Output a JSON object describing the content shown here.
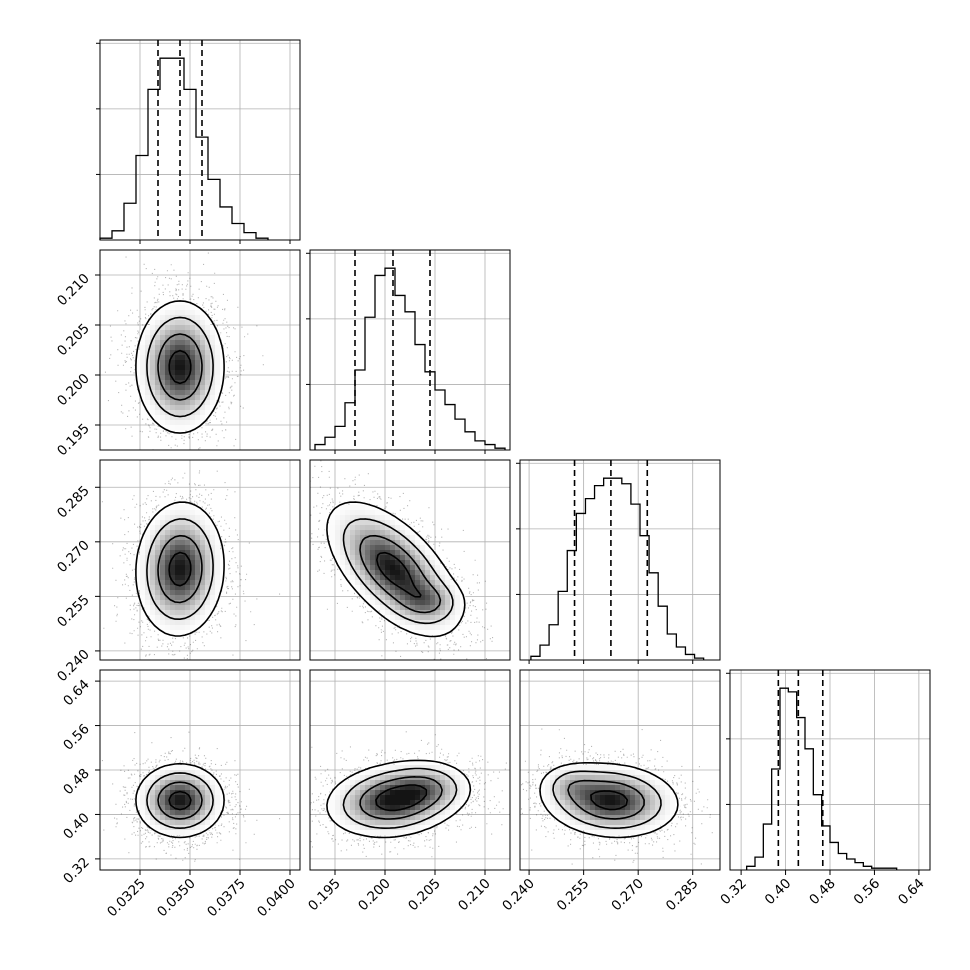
{
  "chart_data": {
    "type": "corner",
    "grid": true,
    "quantile_lines_style": "dashed",
    "parameters": [
      {
        "range": [
          0.0305,
          0.0405
        ],
        "ticks": [
          "0.0325",
          "0.0350",
          "0.0375",
          "0.0400"
        ],
        "tick_values": [
          0.0325,
          0.035,
          0.0375,
          0.04
        ],
        "center": 0.0345,
        "sigma": 0.0011,
        "quantiles": [
          0.0334,
          0.0345,
          0.0356
        ],
        "hist_bins": [
          0.0305,
          0.0311,
          0.0317,
          0.0323,
          0.0329,
          0.0335,
          0.0341,
          0.0347,
          0.0353,
          0.0359,
          0.0365,
          0.0371,
          0.0377,
          0.0383,
          0.0389
        ],
        "hist_counts": [
          0.01,
          0.05,
          0.2,
          0.46,
          0.82,
          0.99,
          0.99,
          0.82,
          0.56,
          0.33,
          0.18,
          0.09,
          0.04,
          0.01
        ]
      },
      {
        "range": [
          0.1925,
          0.2125
        ],
        "ticks": [
          "0.195",
          "0.200",
          "0.205",
          "0.210"
        ],
        "tick_values": [
          0.195,
          0.2,
          0.205,
          0.21
        ],
        "center": 0.2008,
        "sigma": 0.0033,
        "quantiles": [
          0.197,
          0.2008,
          0.2045
        ],
        "hist_bins": [
          0.193,
          0.194,
          0.195,
          0.196,
          0.197,
          0.198,
          0.199,
          0.2,
          0.201,
          0.202,
          0.203,
          0.204,
          0.205,
          0.206,
          0.207,
          0.208,
          0.209,
          0.21,
          0.211,
          0.212
        ],
        "hist_counts": [
          0.03,
          0.07,
          0.13,
          0.26,
          0.44,
          0.73,
          0.96,
          1.0,
          0.85,
          0.76,
          0.58,
          0.43,
          0.33,
          0.25,
          0.17,
          0.1,
          0.05,
          0.03,
          0.01
        ]
      },
      {
        "range": [
          0.2375,
          0.2925
        ],
        "ticks": [
          "0.240",
          "0.255",
          "0.270",
          "0.285"
        ],
        "tick_values": [
          0.24,
          0.255,
          0.27,
          0.285
        ],
        "center": 0.2625,
        "sigma": 0.0092,
        "quantiles": [
          0.2525,
          0.2625,
          0.2725
        ],
        "hist_bins": [
          0.2405,
          0.243,
          0.2455,
          0.248,
          0.2505,
          0.253,
          0.2555,
          0.258,
          0.2605,
          0.263,
          0.2655,
          0.268,
          0.2705,
          0.273,
          0.2755,
          0.278,
          0.2805,
          0.283,
          0.2855,
          0.288
        ],
        "hist_counts": [
          0.02,
          0.08,
          0.19,
          0.37,
          0.59,
          0.79,
          0.87,
          0.94,
          0.98,
          0.98,
          0.95,
          0.84,
          0.67,
          0.47,
          0.29,
          0.14,
          0.07,
          0.03,
          0.01
        ]
      },
      {
        "range": [
          0.3,
          0.66
        ],
        "ticks": [
          "0.32",
          "0.40",
          "0.48",
          "0.56",
          "0.64"
        ],
        "tick_values": [
          0.32,
          0.4,
          0.48,
          0.56,
          0.64
        ],
        "center": 0.425,
        "sigma": 0.033,
        "quantiles": [
          0.387,
          0.423,
          0.467
        ],
        "hist_bins": [
          0.33,
          0.345,
          0.36,
          0.375,
          0.39,
          0.405,
          0.42,
          0.435,
          0.45,
          0.465,
          0.48,
          0.495,
          0.51,
          0.525,
          0.54,
          0.555,
          0.57,
          0.585,
          0.6
        ],
        "hist_counts": [
          0.02,
          0.07,
          0.25,
          0.55,
          0.99,
          0.97,
          0.83,
          0.66,
          0.41,
          0.24,
          0.15,
          0.09,
          0.06,
          0.04,
          0.02,
          0.01,
          0.01,
          0.01
        ]
      }
    ],
    "joint": [
      {
        "row": 1,
        "col": 0,
        "rho": 0.0,
        "blob": null
      },
      {
        "row": 2,
        "col": 0,
        "rho": 0.05,
        "blob": null
      },
      {
        "row": 2,
        "col": 1,
        "rho": -0.6,
        "blob": {
          "mx": 0.2045,
          "my": 0.2535,
          "dx": 0.0018,
          "dy": 0.0032,
          "w": 0.3
        }
      },
      {
        "row": 3,
        "col": 0,
        "rho": 0.0,
        "blob": null
      },
      {
        "row": 3,
        "col": 1,
        "rho": 0.15,
        "blob": {
          "mx": 0.2045,
          "my": 0.45,
          "dx": 0.0023,
          "dy": 0.025,
          "w": 0.35
        }
      },
      {
        "row": 3,
        "col": 2,
        "rho": -0.1,
        "blob": {
          "mx": 0.2515,
          "my": 0.455,
          "dx": 0.0045,
          "dy": 0.02,
          "w": 0.25
        }
      }
    ],
    "contour_levels_sigma": [
      0.5,
      1.0,
      1.5,
      2.0
    ]
  }
}
